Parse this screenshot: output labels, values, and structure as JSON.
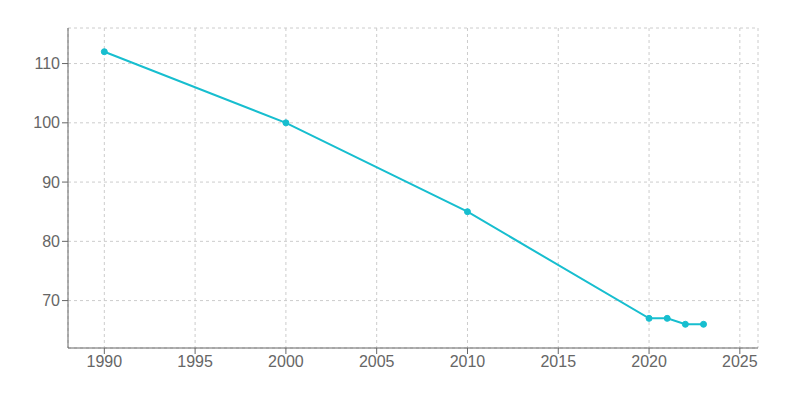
{
  "chart_data": {
    "type": "line",
    "x": [
      1990,
      2000,
      2010,
      2020,
      2021,
      2022,
      2023
    ],
    "values": [
      112,
      100,
      85,
      67,
      67,
      66,
      66
    ],
    "color": "#17becf",
    "marker": "circle",
    "xlim": [
      1988,
      2026
    ],
    "ylim": [
      62,
      116
    ],
    "xticks": [
      1990,
      1995,
      2000,
      2005,
      2010,
      2015,
      2020,
      2025
    ],
    "yticks": [
      70,
      80,
      90,
      100,
      110
    ],
    "grid": true
  }
}
